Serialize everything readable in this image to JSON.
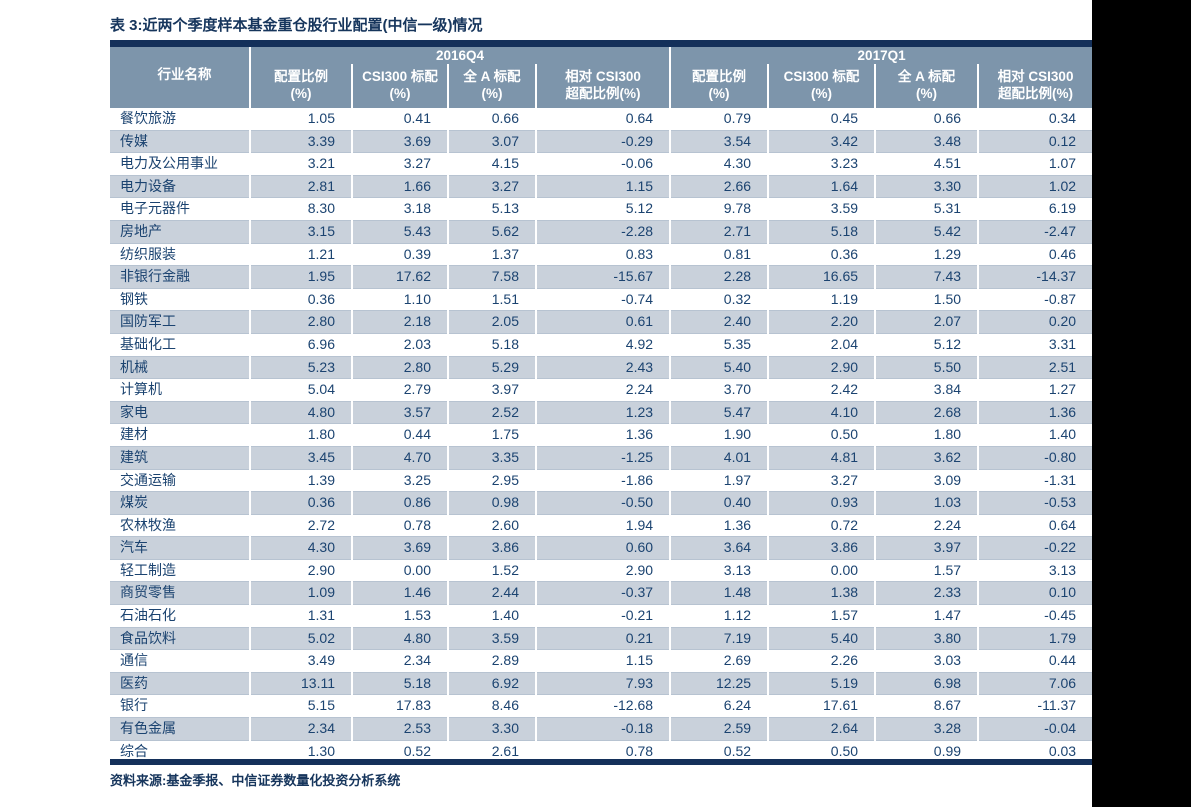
{
  "title": "表 3:近两个季度样本基金重仓股行业配置(中信一级)情况",
  "source_note": "资料来源:基金季报、中信证券数量化投资分析系统",
  "colors": {
    "navy_text": "#16355C",
    "data_text": "#1B4370",
    "header_bg": "#7D95AB",
    "stripe_bg": "#C9D1DB",
    "row_line": "#B7C3D1",
    "top_bottom_bar": "#14305A",
    "page_bg": "#FFFFFF",
    "right_band": "#000000"
  },
  "chart_data": {
    "type": "table",
    "title": "表 3:近两个季度样本基金重仓股行业配置(中信一级)情况",
    "row_header": "行业名称",
    "column_groups": [
      {
        "label": "2016Q4",
        "columns": [
          "配置比例(%)",
          "CSI300 标配(%)",
          "全 A 标配(%)",
          "相对 CSI300 超配比例(%)"
        ]
      },
      {
        "label": "2017Q1",
        "columns": [
          "配置比例(%)",
          "CSI300 标配(%)",
          "全 A 标配(%)",
          "相对 CSI300 超配比例(%)"
        ]
      }
    ],
    "sub_header_lines": [
      [
        "配置比例",
        "(%)"
      ],
      [
        "CSI300 标配",
        "(%)"
      ],
      [
        "全 A 标配",
        "(%)"
      ],
      [
        "相对 CSI300",
        "超配比例(%)"
      ]
    ],
    "rows": [
      {
        "name": "餐饮旅游",
        "values": [
          "1.05",
          "0.41",
          "0.66",
          "0.64",
          "0.79",
          "0.45",
          "0.66",
          "0.34"
        ]
      },
      {
        "name": "传媒",
        "values": [
          "3.39",
          "3.69",
          "3.07",
          "-0.29",
          "3.54",
          "3.42",
          "3.48",
          "0.12"
        ]
      },
      {
        "name": "电力及公用事业",
        "values": [
          "3.21",
          "3.27",
          "4.15",
          "-0.06",
          "4.30",
          "3.23",
          "4.51",
          "1.07"
        ]
      },
      {
        "name": "电力设备",
        "values": [
          "2.81",
          "1.66",
          "3.27",
          "1.15",
          "2.66",
          "1.64",
          "3.30",
          "1.02"
        ]
      },
      {
        "name": "电子元器件",
        "values": [
          "8.30",
          "3.18",
          "5.13",
          "5.12",
          "9.78",
          "3.59",
          "5.31",
          "6.19"
        ]
      },
      {
        "name": "房地产",
        "values": [
          "3.15",
          "5.43",
          "5.62",
          "-2.28",
          "2.71",
          "5.18",
          "5.42",
          "-2.47"
        ]
      },
      {
        "name": "纺织服装",
        "values": [
          "1.21",
          "0.39",
          "1.37",
          "0.83",
          "0.81",
          "0.36",
          "1.29",
          "0.46"
        ]
      },
      {
        "name": "非银行金融",
        "values": [
          "1.95",
          "17.62",
          "7.58",
          "-15.67",
          "2.28",
          "16.65",
          "7.43",
          "-14.37"
        ]
      },
      {
        "name": "钢铁",
        "values": [
          "0.36",
          "1.10",
          "1.51",
          "-0.74",
          "0.32",
          "1.19",
          "1.50",
          "-0.87"
        ]
      },
      {
        "name": "国防军工",
        "values": [
          "2.80",
          "2.18",
          "2.05",
          "0.61",
          "2.40",
          "2.20",
          "2.07",
          "0.20"
        ]
      },
      {
        "name": "基础化工",
        "values": [
          "6.96",
          "2.03",
          "5.18",
          "4.92",
          "5.35",
          "2.04",
          "5.12",
          "3.31"
        ]
      },
      {
        "name": "机械",
        "values": [
          "5.23",
          "2.80",
          "5.29",
          "2.43",
          "5.40",
          "2.90",
          "5.50",
          "2.51"
        ]
      },
      {
        "name": "计算机",
        "values": [
          "5.04",
          "2.79",
          "3.97",
          "2.24",
          "3.70",
          "2.42",
          "3.84",
          "1.27"
        ]
      },
      {
        "name": "家电",
        "values": [
          "4.80",
          "3.57",
          "2.52",
          "1.23",
          "5.47",
          "4.10",
          "2.68",
          "1.36"
        ]
      },
      {
        "name": "建材",
        "values": [
          "1.80",
          "0.44",
          "1.75",
          "1.36",
          "1.90",
          "0.50",
          "1.80",
          "1.40"
        ]
      },
      {
        "name": "建筑",
        "values": [
          "3.45",
          "4.70",
          "3.35",
          "-1.25",
          "4.01",
          "4.81",
          "3.62",
          "-0.80"
        ]
      },
      {
        "name": "交通运输",
        "values": [
          "1.39",
          "3.25",
          "2.95",
          "-1.86",
          "1.97",
          "3.27",
          "3.09",
          "-1.31"
        ]
      },
      {
        "name": "煤炭",
        "values": [
          "0.36",
          "0.86",
          "0.98",
          "-0.50",
          "0.40",
          "0.93",
          "1.03",
          "-0.53"
        ]
      },
      {
        "name": "农林牧渔",
        "values": [
          "2.72",
          "0.78",
          "2.60",
          "1.94",
          "1.36",
          "0.72",
          "2.24",
          "0.64"
        ]
      },
      {
        "name": "汽车",
        "values": [
          "4.30",
          "3.69",
          "3.86",
          "0.60",
          "3.64",
          "3.86",
          "3.97",
          "-0.22"
        ]
      },
      {
        "name": "轻工制造",
        "values": [
          "2.90",
          "0.00",
          "1.52",
          "2.90",
          "3.13",
          "0.00",
          "1.57",
          "3.13"
        ]
      },
      {
        "name": "商贸零售",
        "values": [
          "1.09",
          "1.46",
          "2.44",
          "-0.37",
          "1.48",
          "1.38",
          "2.33",
          "0.10"
        ]
      },
      {
        "name": "石油石化",
        "values": [
          "1.31",
          "1.53",
          "1.40",
          "-0.21",
          "1.12",
          "1.57",
          "1.47",
          "-0.45"
        ]
      },
      {
        "name": "食品饮料",
        "values": [
          "5.02",
          "4.80",
          "3.59",
          "0.21",
          "7.19",
          "5.40",
          "3.80",
          "1.79"
        ]
      },
      {
        "name": "通信",
        "values": [
          "3.49",
          "2.34",
          "2.89",
          "1.15",
          "2.69",
          "2.26",
          "3.03",
          "0.44"
        ]
      },
      {
        "name": "医药",
        "values": [
          "13.11",
          "5.18",
          "6.92",
          "7.93",
          "12.25",
          "5.19",
          "6.98",
          "7.06"
        ]
      },
      {
        "name": "银行",
        "values": [
          "5.15",
          "17.83",
          "8.46",
          "-12.68",
          "6.24",
          "17.61",
          "8.67",
          "-11.37"
        ]
      },
      {
        "name": "有色金属",
        "values": [
          "2.34",
          "2.53",
          "3.30",
          "-0.18",
          "2.59",
          "2.64",
          "3.28",
          "-0.04"
        ]
      },
      {
        "name": "综合",
        "values": [
          "1.30",
          "0.52",
          "2.61",
          "0.78",
          "0.52",
          "0.50",
          "0.99",
          "0.03"
        ]
      }
    ],
    "source_note": "资料来源:基金季报、中信证券数量化投资分析系统"
  }
}
